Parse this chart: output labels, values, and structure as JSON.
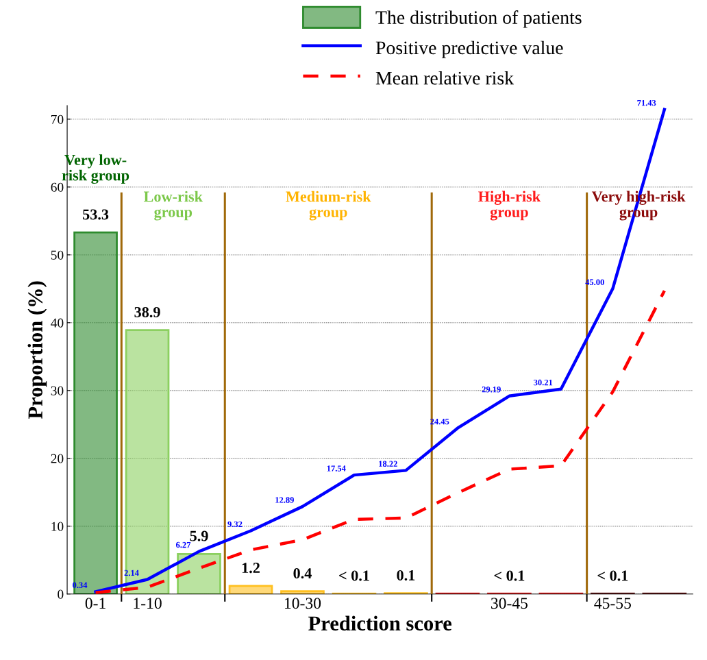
{
  "chart_data": {
    "type": "bar",
    "xlabel": "Prediction score",
    "ylabel": "Proportion (%)",
    "categories": [
      "0-1",
      "1-10",
      null,
      null,
      "10-30",
      null,
      null,
      null,
      "30-45",
      null,
      "45-55",
      null
    ],
    "series": [
      {
        "name": "The distribution of patients",
        "values": [
          53.3,
          38.9,
          5.9,
          1.2,
          0.4,
          0.05,
          0.1,
          0.05,
          0.05,
          0.05,
          0.05,
          0.05
        ],
        "colors": [
          "#2e8b2e",
          "#8cd060",
          "#8cd060",
          "#ffc020",
          "#ffc020",
          "#ffc020",
          "#ffc020",
          "#e01010",
          "#e01010",
          "#e01010",
          "#5a0a0a",
          "#5a0a0a"
        ],
        "color": "#2e8b2e",
        "value_labels": [
          "53.3",
          "38.9",
          "5.9",
          "1.2",
          "0.4",
          "< 0.1",
          "0.1",
          null,
          "< 0.1",
          null,
          "< 0.1",
          null
        ]
      },
      {
        "name": "Positive predictive value",
        "type": "line",
        "color": "#0000ff",
        "line_style": "solid",
        "values": [
          0.34,
          2.14,
          6.27,
          9.32,
          12.89,
          17.54,
          18.22,
          24.45,
          29.19,
          30.21,
          45.0,
          71.43
        ],
        "value_labels": [
          "0.34",
          "2.14",
          "6.27",
          "9.32",
          "12.89",
          "17.54",
          "18.22",
          "24.45",
          "29.19",
          "30.21",
          "45.00",
          "71.43"
        ]
      },
      {
        "name": "Mean relative risk",
        "type": "line",
        "color": "#ff0000",
        "line_style": "dashed",
        "values": [
          0.2,
          1.0,
          3.8,
          6.5,
          8.0,
          11.0,
          11.2,
          14.9,
          18.4,
          18.9,
          29.8,
          44.7
        ]
      }
    ],
    "annotations": [
      "Very low-risk group",
      "Low-risk group",
      "Medium-risk group",
      "High-risk group",
      "Very high-risk group"
    ],
    "ylim": [
      0,
      72
    ],
    "yticks": [
      0,
      10,
      20,
      30,
      40,
      50,
      60,
      70
    ],
    "grid": "y",
    "legend": "top"
  }
}
